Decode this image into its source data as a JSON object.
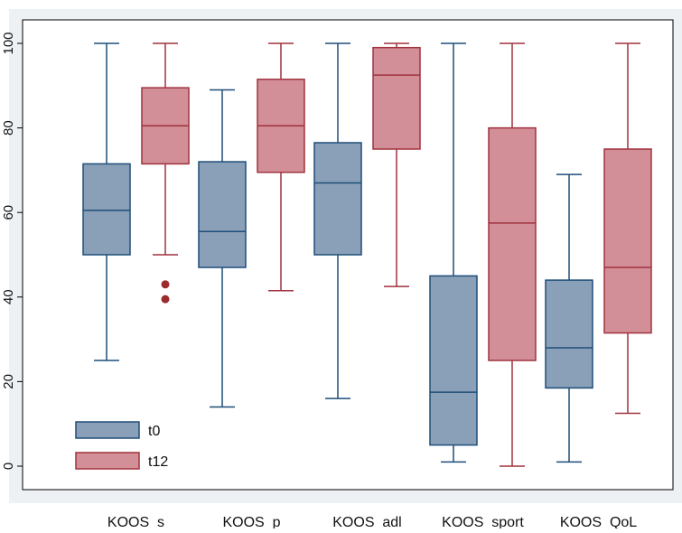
{
  "chart_data": {
    "type": "box",
    "categories": [
      "KOOS_s",
      "KOOS_p",
      "KOOS_adl",
      "KOOS_sport",
      "KOOS_QoL"
    ],
    "ylim": [
      0,
      100
    ],
    "yticks": [
      0,
      20,
      40,
      60,
      80,
      100
    ],
    "legend_position": "bottom-left",
    "grid": false,
    "colors": {
      "plot_bg": "#eef1f4",
      "frame": "#000000",
      "t0_fill": "#8aa0b8",
      "t0_stroke": "#1f4e79",
      "t12_fill": "#d38f97",
      "t12_stroke": "#a0323e",
      "outlier": "#9b2c2c"
    },
    "series": [
      {
        "name": "t0",
        "boxes": [
          {
            "min": 25,
            "q1": 50,
            "median": 60.5,
            "q3": 71.5,
            "max": 100,
            "outliers": []
          },
          {
            "min": 14,
            "q1": 47,
            "median": 55.5,
            "q3": 72,
            "max": 89,
            "outliers": []
          },
          {
            "min": 16,
            "q1": 50,
            "median": 67,
            "q3": 76.5,
            "max": 100,
            "outliers": []
          },
          {
            "min": 1,
            "q1": 5,
            "median": 17.5,
            "q3": 45,
            "max": 100,
            "outliers": []
          },
          {
            "min": 1,
            "q1": 18.5,
            "median": 28,
            "q3": 44,
            "max": 69,
            "outliers": []
          }
        ]
      },
      {
        "name": "t12",
        "boxes": [
          {
            "min": 50,
            "q1": 71.5,
            "median": 80.5,
            "q3": 89.5,
            "max": 100,
            "outliers": [
              43,
              39.5
            ]
          },
          {
            "min": 41.5,
            "q1": 69.5,
            "median": 80.5,
            "q3": 91.5,
            "max": 100,
            "outliers": []
          },
          {
            "min": 42.5,
            "q1": 75,
            "median": 92.5,
            "q3": 99,
            "max": 100,
            "outliers": []
          },
          {
            "min": 0,
            "q1": 25,
            "median": 57.5,
            "q3": 80,
            "max": 100,
            "outliers": []
          },
          {
            "min": 12.5,
            "q1": 31.5,
            "median": 47,
            "q3": 75,
            "max": 100,
            "outliers": []
          }
        ]
      }
    ]
  }
}
